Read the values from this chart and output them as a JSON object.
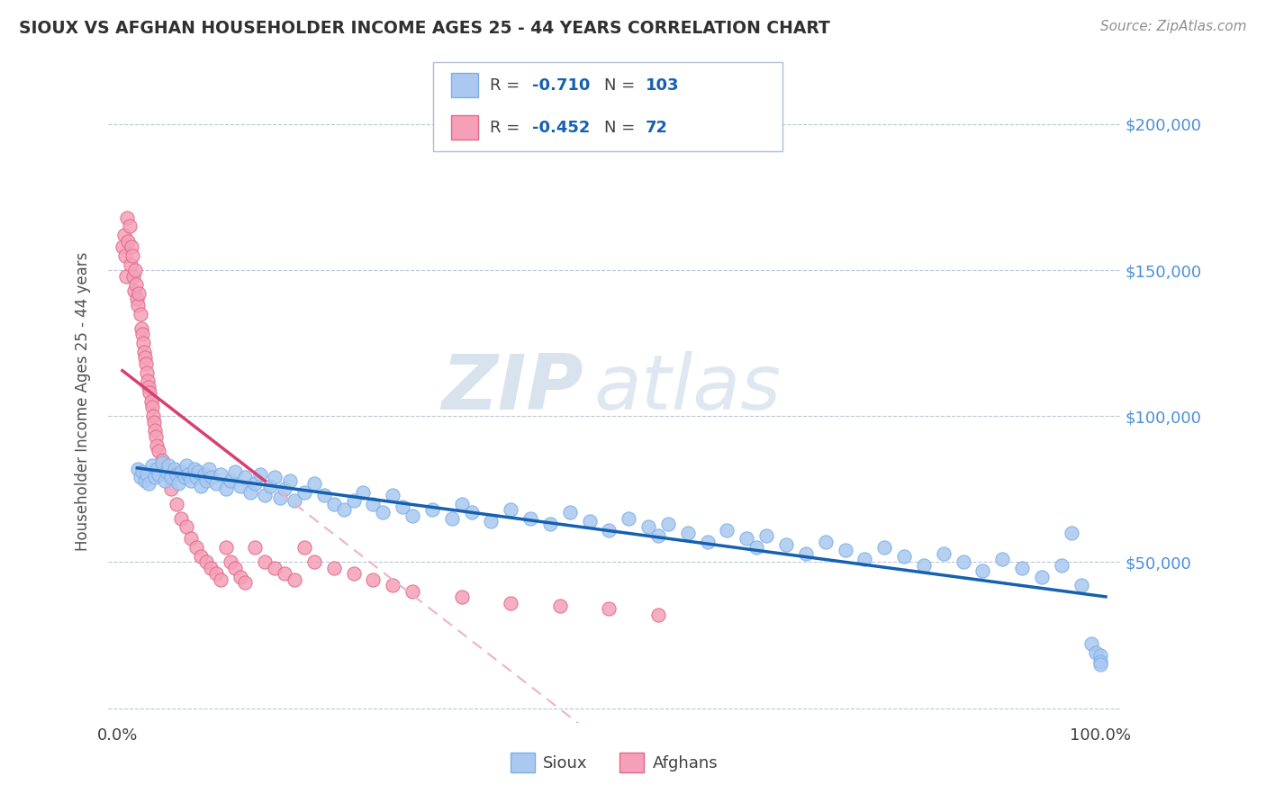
{
  "title": "SIOUX VS AFGHAN HOUSEHOLDER INCOME AGES 25 - 44 YEARS CORRELATION CHART",
  "source": "Source: ZipAtlas.com",
  "ylabel": "Householder Income Ages 25 - 44 years",
  "xlim": [
    -1.0,
    102.0
  ],
  "ylim": [
    -5000,
    215000
  ],
  "yticks": [
    0,
    50000,
    100000,
    150000,
    200000
  ],
  "ytick_labels": [
    "",
    "$50,000",
    "$100,000",
    "$150,000",
    "$200,000"
  ],
  "xticks": [
    0.0,
    100.0
  ],
  "xtick_labels": [
    "0.0%",
    "100.0%"
  ],
  "sioux_color": "#aac8f0",
  "sioux_edge": "#7aaee8",
  "afghan_color": "#f5a0b8",
  "afghan_edge": "#e06888",
  "trendline_blue": "#1560b0",
  "trendline_pink": "#d84070",
  "trendline_pink_dashed": "#f0b0c8",
  "legend_R_sioux": "-0.710",
  "legend_N_sioux": "103",
  "legend_R_afghan": "-0.452",
  "legend_N_afghan": "72",
  "watermark_zip": "ZIP",
  "watermark_atlas": "atlas",
  "watermark_color": "#c8d8ea",
  "title_color": "#303030",
  "axis_label_color": "#505050",
  "ytick_color": "#4a90d9",
  "background_color": "#ffffff",
  "grid_color": "#b8c8d8",
  "sioux_x": [
    2.1,
    2.3,
    2.5,
    2.8,
    3.0,
    3.2,
    3.5,
    3.8,
    4.0,
    4.2,
    4.5,
    4.8,
    5.0,
    5.2,
    5.5,
    5.8,
    6.0,
    6.2,
    6.5,
    6.8,
    7.0,
    7.2,
    7.5,
    7.8,
    8.0,
    8.2,
    8.5,
    8.8,
    9.0,
    9.3,
    9.6,
    10.0,
    10.5,
    11.0,
    11.5,
    12.0,
    12.5,
    13.0,
    13.5,
    14.0,
    14.5,
    15.0,
    15.5,
    16.0,
    16.5,
    17.0,
    17.5,
    18.0,
    19.0,
    20.0,
    21.0,
    22.0,
    23.0,
    24.0,
    25.0,
    26.0,
    27.0,
    28.0,
    29.0,
    30.0,
    32.0,
    34.0,
    35.0,
    36.0,
    38.0,
    40.0,
    42.0,
    44.0,
    46.0,
    48.0,
    50.0,
    52.0,
    54.0,
    55.0,
    56.0,
    58.0,
    60.0,
    62.0,
    64.0,
    65.0,
    66.0,
    68.0,
    70.0,
    72.0,
    74.0,
    76.0,
    78.0,
    80.0,
    82.0,
    84.0,
    86.0,
    88.0,
    90.0,
    92.0,
    94.0,
    96.0,
    97.0,
    98.0,
    99.0,
    99.5,
    100.0,
    100.0,
    100.0
  ],
  "sioux_y": [
    82000,
    79000,
    81000,
    78000,
    80000,
    77000,
    83000,
    79000,
    82000,
    80000,
    84000,
    78000,
    81000,
    83000,
    79000,
    82000,
    80000,
    77000,
    81000,
    79000,
    83000,
    80000,
    78000,
    82000,
    79000,
    81000,
    76000,
    80000,
    78000,
    82000,
    79000,
    77000,
    80000,
    75000,
    78000,
    81000,
    76000,
    79000,
    74000,
    77000,
    80000,
    73000,
    76000,
    79000,
    72000,
    75000,
    78000,
    71000,
    74000,
    77000,
    73000,
    70000,
    68000,
    71000,
    74000,
    70000,
    67000,
    73000,
    69000,
    66000,
    68000,
    65000,
    70000,
    67000,
    64000,
    68000,
    65000,
    63000,
    67000,
    64000,
    61000,
    65000,
    62000,
    59000,
    63000,
    60000,
    57000,
    61000,
    58000,
    55000,
    59000,
    56000,
    53000,
    57000,
    54000,
    51000,
    55000,
    52000,
    49000,
    53000,
    50000,
    47000,
    51000,
    48000,
    45000,
    49000,
    60000,
    42000,
    22000,
    19000,
    18000,
    16000,
    15000
  ],
  "afghan_x": [
    0.5,
    0.7,
    0.8,
    0.9,
    1.0,
    1.1,
    1.2,
    1.3,
    1.4,
    1.5,
    1.6,
    1.7,
    1.8,
    1.9,
    2.0,
    2.1,
    2.2,
    2.3,
    2.4,
    2.5,
    2.6,
    2.7,
    2.8,
    2.9,
    3.0,
    3.1,
    3.2,
    3.3,
    3.4,
    3.5,
    3.6,
    3.7,
    3.8,
    3.9,
    4.0,
    4.2,
    4.5,
    4.8,
    5.0,
    5.5,
    6.0,
    6.5,
    7.0,
    7.5,
    8.0,
    8.5,
    9.0,
    9.5,
    10.0,
    10.5,
    11.0,
    11.5,
    12.0,
    12.5,
    13.0,
    14.0,
    15.0,
    16.0,
    17.0,
    18.0,
    19.0,
    20.0,
    22.0,
    24.0,
    26.0,
    28.0,
    30.0,
    35.0,
    40.0,
    45.0,
    50.0,
    55.0
  ],
  "afghan_y": [
    158000,
    162000,
    155000,
    148000,
    168000,
    160000,
    165000,
    152000,
    158000,
    155000,
    148000,
    143000,
    150000,
    145000,
    140000,
    138000,
    142000,
    135000,
    130000,
    128000,
    125000,
    122000,
    120000,
    118000,
    115000,
    112000,
    110000,
    108000,
    105000,
    103000,
    100000,
    98000,
    95000,
    93000,
    90000,
    88000,
    85000,
    82000,
    80000,
    75000,
    70000,
    65000,
    62000,
    58000,
    55000,
    52000,
    50000,
    48000,
    46000,
    44000,
    55000,
    50000,
    48000,
    45000,
    43000,
    55000,
    50000,
    48000,
    46000,
    44000,
    55000,
    50000,
    48000,
    46000,
    44000,
    42000,
    40000,
    38000,
    36000,
    35000,
    34000,
    32000
  ]
}
